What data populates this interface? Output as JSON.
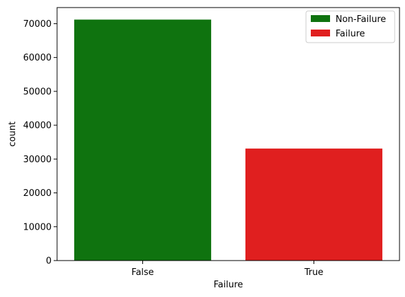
{
  "chart_data": {
    "type": "bar",
    "xlabel": "Failure",
    "ylabel": "count",
    "categories": [
      "False",
      "True"
    ],
    "values": [
      71200,
      33100
    ],
    "bar_colors": [
      "#0f730f",
      "#e01f1f"
    ],
    "ylim": [
      0,
      74760
    ],
    "yticks": [
      0,
      10000,
      20000,
      30000,
      40000,
      50000,
      60000,
      70000
    ],
    "legend": {
      "placement": "top-right",
      "entries": [
        {
          "label": "Non-Failure",
          "color": "#0f730f"
        },
        {
          "label": "Failure",
          "color": "#e01f1f"
        }
      ]
    }
  }
}
